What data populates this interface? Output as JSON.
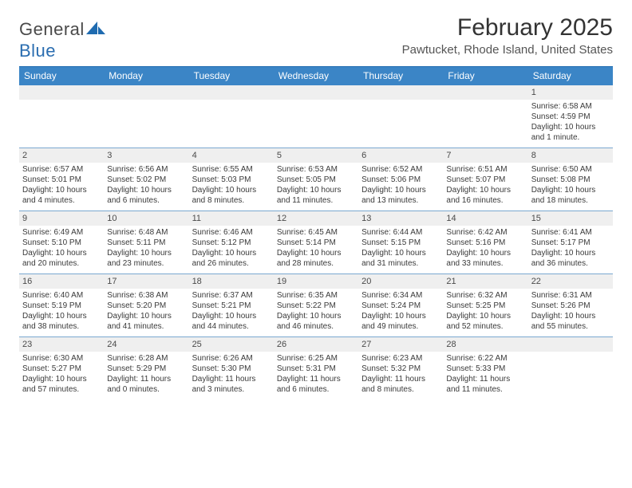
{
  "logo": {
    "word1": "General",
    "word2": "Blue"
  },
  "title": "February 2025",
  "location": "Pawtucket, Rhode Island, United States",
  "colors": {
    "header_bg": "#3b85c6",
    "header_border": "#1f6bb0",
    "row_border": "#7aa8d0",
    "daynum_bg": "#efefef",
    "text": "#333333"
  },
  "days_of_week": [
    "Sunday",
    "Monday",
    "Tuesday",
    "Wednesday",
    "Thursday",
    "Friday",
    "Saturday"
  ],
  "weeks": [
    [
      {
        "num": "",
        "lines": []
      },
      {
        "num": "",
        "lines": []
      },
      {
        "num": "",
        "lines": []
      },
      {
        "num": "",
        "lines": []
      },
      {
        "num": "",
        "lines": []
      },
      {
        "num": "",
        "lines": []
      },
      {
        "num": "1",
        "lines": [
          "Sunrise: 6:58 AM",
          "Sunset: 4:59 PM",
          "Daylight: 10 hours and 1 minute."
        ]
      }
    ],
    [
      {
        "num": "2",
        "lines": [
          "Sunrise: 6:57 AM",
          "Sunset: 5:01 PM",
          "Daylight: 10 hours and 4 minutes."
        ]
      },
      {
        "num": "3",
        "lines": [
          "Sunrise: 6:56 AM",
          "Sunset: 5:02 PM",
          "Daylight: 10 hours and 6 minutes."
        ]
      },
      {
        "num": "4",
        "lines": [
          "Sunrise: 6:55 AM",
          "Sunset: 5:03 PM",
          "Daylight: 10 hours and 8 minutes."
        ]
      },
      {
        "num": "5",
        "lines": [
          "Sunrise: 6:53 AM",
          "Sunset: 5:05 PM",
          "Daylight: 10 hours and 11 minutes."
        ]
      },
      {
        "num": "6",
        "lines": [
          "Sunrise: 6:52 AM",
          "Sunset: 5:06 PM",
          "Daylight: 10 hours and 13 minutes."
        ]
      },
      {
        "num": "7",
        "lines": [
          "Sunrise: 6:51 AM",
          "Sunset: 5:07 PM",
          "Daylight: 10 hours and 16 minutes."
        ]
      },
      {
        "num": "8",
        "lines": [
          "Sunrise: 6:50 AM",
          "Sunset: 5:08 PM",
          "Daylight: 10 hours and 18 minutes."
        ]
      }
    ],
    [
      {
        "num": "9",
        "lines": [
          "Sunrise: 6:49 AM",
          "Sunset: 5:10 PM",
          "Daylight: 10 hours and 20 minutes."
        ]
      },
      {
        "num": "10",
        "lines": [
          "Sunrise: 6:48 AM",
          "Sunset: 5:11 PM",
          "Daylight: 10 hours and 23 minutes."
        ]
      },
      {
        "num": "11",
        "lines": [
          "Sunrise: 6:46 AM",
          "Sunset: 5:12 PM",
          "Daylight: 10 hours and 26 minutes."
        ]
      },
      {
        "num": "12",
        "lines": [
          "Sunrise: 6:45 AM",
          "Sunset: 5:14 PM",
          "Daylight: 10 hours and 28 minutes."
        ]
      },
      {
        "num": "13",
        "lines": [
          "Sunrise: 6:44 AM",
          "Sunset: 5:15 PM",
          "Daylight: 10 hours and 31 minutes."
        ]
      },
      {
        "num": "14",
        "lines": [
          "Sunrise: 6:42 AM",
          "Sunset: 5:16 PM",
          "Daylight: 10 hours and 33 minutes."
        ]
      },
      {
        "num": "15",
        "lines": [
          "Sunrise: 6:41 AM",
          "Sunset: 5:17 PM",
          "Daylight: 10 hours and 36 minutes."
        ]
      }
    ],
    [
      {
        "num": "16",
        "lines": [
          "Sunrise: 6:40 AM",
          "Sunset: 5:19 PM",
          "Daylight: 10 hours and 38 minutes."
        ]
      },
      {
        "num": "17",
        "lines": [
          "Sunrise: 6:38 AM",
          "Sunset: 5:20 PM",
          "Daylight: 10 hours and 41 minutes."
        ]
      },
      {
        "num": "18",
        "lines": [
          "Sunrise: 6:37 AM",
          "Sunset: 5:21 PM",
          "Daylight: 10 hours and 44 minutes."
        ]
      },
      {
        "num": "19",
        "lines": [
          "Sunrise: 6:35 AM",
          "Sunset: 5:22 PM",
          "Daylight: 10 hours and 46 minutes."
        ]
      },
      {
        "num": "20",
        "lines": [
          "Sunrise: 6:34 AM",
          "Sunset: 5:24 PM",
          "Daylight: 10 hours and 49 minutes."
        ]
      },
      {
        "num": "21",
        "lines": [
          "Sunrise: 6:32 AM",
          "Sunset: 5:25 PM",
          "Daylight: 10 hours and 52 minutes."
        ]
      },
      {
        "num": "22",
        "lines": [
          "Sunrise: 6:31 AM",
          "Sunset: 5:26 PM",
          "Daylight: 10 hours and 55 minutes."
        ]
      }
    ],
    [
      {
        "num": "23",
        "lines": [
          "Sunrise: 6:30 AM",
          "Sunset: 5:27 PM",
          "Daylight: 10 hours and 57 minutes."
        ]
      },
      {
        "num": "24",
        "lines": [
          "Sunrise: 6:28 AM",
          "Sunset: 5:29 PM",
          "Daylight: 11 hours and 0 minutes."
        ]
      },
      {
        "num": "25",
        "lines": [
          "Sunrise: 6:26 AM",
          "Sunset: 5:30 PM",
          "Daylight: 11 hours and 3 minutes."
        ]
      },
      {
        "num": "26",
        "lines": [
          "Sunrise: 6:25 AM",
          "Sunset: 5:31 PM",
          "Daylight: 11 hours and 6 minutes."
        ]
      },
      {
        "num": "27",
        "lines": [
          "Sunrise: 6:23 AM",
          "Sunset: 5:32 PM",
          "Daylight: 11 hours and 8 minutes."
        ]
      },
      {
        "num": "28",
        "lines": [
          "Sunrise: 6:22 AM",
          "Sunset: 5:33 PM",
          "Daylight: 11 hours and 11 minutes."
        ]
      },
      {
        "num": "",
        "lines": []
      }
    ]
  ]
}
